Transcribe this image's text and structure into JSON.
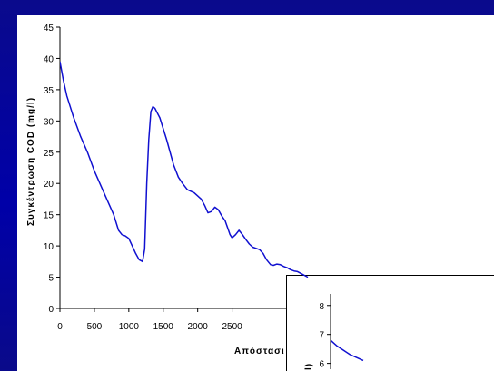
{
  "colors": {
    "background": "#0000a8",
    "plot_area": "#ffffff",
    "series_line": "#1010d0",
    "axis": "#000000"
  },
  "chart_data": [
    {
      "type": "line",
      "title": "",
      "xlabel": "Απόστασι",
      "ylabel": "Συγκέντρωση COD (mg/l)",
      "xlim": [
        0,
        3600
      ],
      "ylim": [
        0,
        45
      ],
      "x_ticks": [
        0,
        500,
        1000,
        1500,
        2000,
        2500
      ],
      "x_tick_labels": [
        "0",
        "500",
        "1000",
        "1500",
        "2000",
        "2500"
      ],
      "y_ticks": [
        0,
        5,
        10,
        15,
        20,
        25,
        30,
        35,
        40,
        45
      ],
      "y_tick_labels": [
        "0",
        "5",
        "10",
        "15",
        "20",
        "25",
        "30",
        "35",
        "40",
        "45"
      ],
      "grid": false,
      "legend": "none",
      "series": [
        {
          "x": [
            0,
            50,
            100,
            200,
            300,
            400,
            500,
            600,
            700,
            780,
            850,
            900,
            950,
            1000,
            1050,
            1100,
            1150,
            1200,
            1230,
            1260,
            1290,
            1320,
            1350,
            1380,
            1450,
            1550,
            1650,
            1720,
            1780,
            1850,
            1950,
            2050,
            2100,
            2150,
            2200,
            2250,
            2300,
            2350,
            2400,
            2470,
            2500,
            2530,
            2550,
            2600,
            2650,
            2700,
            2750,
            2800,
            2900,
            2950,
            3000,
            3060,
            3100,
            3150,
            3200,
            3250,
            3300,
            3350,
            3400,
            3450,
            3500,
            3550,
            3600
          ],
          "y": [
            39.5,
            36.5,
            34.0,
            30.5,
            27.5,
            25.0,
            22.0,
            19.5,
            17.0,
            15.0,
            12.5,
            11.8,
            11.6,
            11.2,
            10.0,
            8.8,
            7.8,
            7.5,
            9.5,
            20.0,
            27.0,
            31.5,
            32.3,
            32.0,
            30.5,
            27.0,
            23.0,
            21.0,
            20.0,
            19.0,
            18.5,
            17.5,
            16.5,
            15.3,
            15.5,
            16.2,
            15.8,
            14.8,
            14.0,
            11.8,
            11.3,
            11.6,
            11.8,
            12.5,
            11.8,
            11.0,
            10.3,
            9.8,
            9.4,
            8.8,
            7.8,
            7.0,
            6.9,
            7.1,
            7.0,
            6.7,
            6.5,
            6.2,
            6.0,
            5.9,
            5.6,
            5.3,
            5.0
          ]
        }
      ]
    },
    {
      "type": "line",
      "title": "",
      "xlabel": "",
      "ylabel": "l)",
      "xlim": [
        0,
        100
      ],
      "ylim": [
        5.8,
        8.4
      ],
      "y_ticks": [
        6,
        7,
        8
      ],
      "y_tick_labels": [
        "6",
        "7",
        "8"
      ],
      "grid": false,
      "legend": "none",
      "series": [
        {
          "x": [
            0,
            4,
            8,
            12,
            16,
            20
          ],
          "y": [
            6.8,
            6.6,
            6.45,
            6.3,
            6.2,
            6.1
          ]
        }
      ]
    }
  ]
}
